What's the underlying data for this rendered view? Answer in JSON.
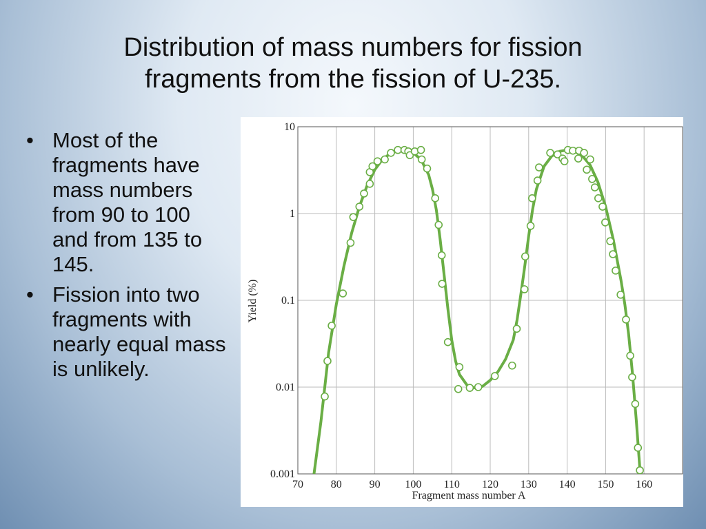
{
  "title": "Distribution of mass numbers for fission fragments from the fission of U-235.",
  "bullets": [
    "Most of the fragments have mass numbers from 90 to 100 and from 135 to 145.",
    "Fission into two fragments with nearly equal mass is unlikely."
  ],
  "chart_data": {
    "type": "scatter",
    "xlabel": "Fragment mass number A",
    "ylabel": "Yield (%)",
    "xlim": [
      70,
      170
    ],
    "ylim": [
      0.001,
      10
    ],
    "xticks": [
      70,
      80,
      90,
      100,
      110,
      120,
      130,
      140,
      150,
      160
    ],
    "yticks": [
      0.001,
      0.01,
      0.1,
      1,
      10
    ],
    "log_y": true,
    "grid": true,
    "series": [
      {
        "type": "scatter",
        "color": "#6aae45",
        "x": [
          77.0,
          77.7,
          78.8,
          81.7,
          83.7,
          84.4,
          86.0,
          87.2,
          88.7,
          88.7,
          89.4,
          90.7,
          92.6,
          94.2,
          96.0,
          97.7,
          98.7,
          99.1,
          100.4,
          102.0,
          102.2,
          103.6,
          105.7,
          106.6,
          107.4,
          107.5,
          109.0,
          112.0,
          111.7,
          114.7,
          116.9,
          121.2,
          125.7,
          126.9,
          128.9,
          129.1,
          130.5,
          130.9,
          132.3,
          132.7,
          135.6,
          137.5,
          138.8,
          139.3,
          140.2,
          141.5,
          143.1,
          142.9,
          144.4,
          146.0,
          145.1,
          146.5,
          147.2,
          148.1,
          149.2,
          149.9,
          151.2,
          151.9,
          152.6,
          153.9,
          155.3,
          156.4,
          156.9,
          157.7,
          158.4,
          158.9
        ],
        "values": [
          0.0078,
          0.02,
          0.051,
          0.12,
          0.46,
          0.91,
          1.2,
          1.7,
          2.2,
          3.0,
          3.5,
          4.0,
          4.2,
          5.0,
          5.4,
          5.4,
          5.2,
          4.7,
          5.2,
          5.4,
          4.2,
          3.3,
          1.5,
          0.74,
          0.33,
          0.155,
          0.033,
          0.017,
          0.0095,
          0.0098,
          0.01,
          0.0134,
          0.0177,
          0.047,
          0.134,
          0.32,
          0.72,
          1.5,
          2.4,
          3.4,
          5.0,
          4.8,
          4.3,
          4.0,
          5.4,
          5.3,
          5.3,
          4.3,
          5.0,
          4.2,
          3.2,
          2.5,
          2.0,
          1.5,
          1.2,
          0.79,
          0.48,
          0.34,
          0.22,
          0.116,
          0.06,
          0.023,
          0.013,
          0.0064,
          0.002,
          0.0011
        ]
      },
      {
        "type": "line",
        "color": "#6aae45",
        "x": [
          74.2,
          76,
          78,
          80,
          82,
          84,
          86,
          88,
          90,
          92,
          94,
          96,
          98,
          100,
          102,
          104,
          105,
          106,
          107,
          108,
          109,
          110,
          111,
          112,
          114,
          116,
          118,
          120,
          122,
          124,
          126,
          127,
          128,
          129,
          130,
          131,
          132,
          134,
          136,
          138,
          140,
          142,
          144,
          146,
          148,
          150,
          152,
          154,
          155,
          156,
          157,
          158,
          159
        ],
        "values": [
          0.001,
          0.004,
          0.025,
          0.09,
          0.25,
          0.6,
          1.2,
          2.1,
          3.2,
          4.2,
          4.9,
          5.3,
          5.3,
          5.0,
          4.2,
          2.8,
          1.9,
          1.1,
          0.5,
          0.2,
          0.08,
          0.035,
          0.02,
          0.014,
          0.0105,
          0.0098,
          0.0102,
          0.012,
          0.015,
          0.021,
          0.035,
          0.06,
          0.12,
          0.25,
          0.55,
          1.1,
          1.9,
          3.5,
          4.6,
          5.2,
          5.4,
          5.2,
          4.6,
          3.6,
          2.3,
          1.2,
          0.5,
          0.17,
          0.09,
          0.04,
          0.014,
          0.004,
          0.001
        ]
      }
    ]
  }
}
